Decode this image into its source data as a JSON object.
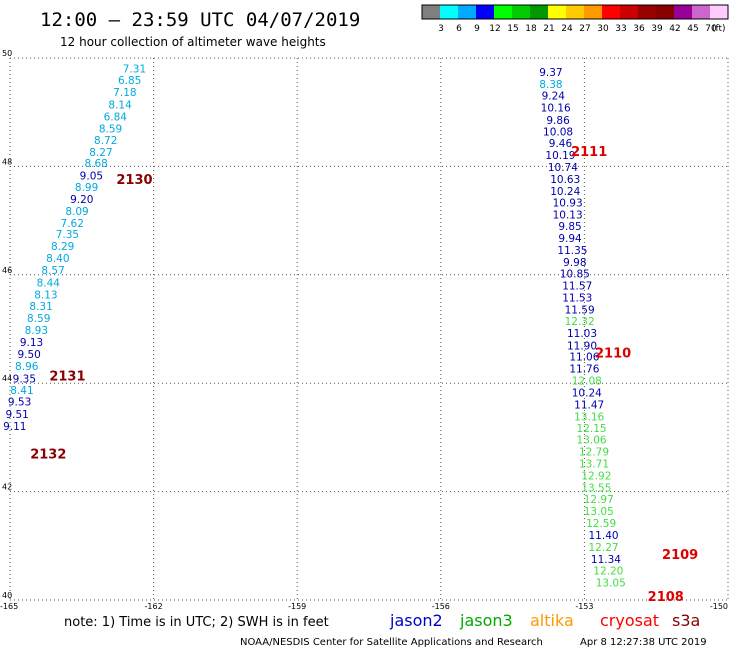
{
  "header": {
    "title": "12:00 — 23:59 UTC 04/07/2019",
    "subtitle": "12 hour collection of altimeter wave heights"
  },
  "footer": {
    "note": "note:  1) Time is in UTC;  2) SWH is in feet",
    "credit": "NOAA/NESDIS Center for Satellite Applications and Research",
    "timestamp": "Apr  8 12:27:38 UTC 2019"
  },
  "satellites": [
    {
      "name": "jason2",
      "color": "#0000cc"
    },
    {
      "name": "jason3",
      "color": "#00aa00"
    },
    {
      "name": "altika",
      "color": "#ff9900"
    },
    {
      "name": "cryosat",
      "color": "#ff0000"
    },
    {
      "name": "s3a",
      "color": "#880000"
    }
  ],
  "legend": {
    "unit": "(ft)",
    "bins": [
      {
        "label": "",
        "color": "#808080"
      },
      {
        "label": "3",
        "color": "#00ffff"
      },
      {
        "label": "6",
        "color": "#00aaff"
      },
      {
        "label": "9",
        "color": "#0000ff"
      },
      {
        "label": "12",
        "color": "#00ff00"
      },
      {
        "label": "15",
        "color": "#00cc00"
      },
      {
        "label": "18",
        "color": "#009900"
      },
      {
        "label": "21",
        "color": "#ffff00"
      },
      {
        "label": "24",
        "color": "#ffcc00"
      },
      {
        "label": "27",
        "color": "#ff9900"
      },
      {
        "label": "30",
        "color": "#ff0000"
      },
      {
        "label": "33",
        "color": "#cc0000"
      },
      {
        "label": "36",
        "color": "#990000"
      },
      {
        "label": "39",
        "color": "#880000"
      },
      {
        "label": "42",
        "color": "#990099"
      },
      {
        "label": "45",
        "color": "#cc66cc"
      },
      {
        "label": "70",
        "color": "#ffccff"
      }
    ]
  },
  "chart_data": {
    "type": "scatter",
    "xlim": [
      -165,
      -150
    ],
    "ylim": [
      40,
      50
    ],
    "x_ticks": [
      "-165",
      "-162",
      "-159",
      "-156",
      "-153",
      "-150"
    ],
    "y_ticks": [
      "40",
      "42",
      "44",
      "46",
      "48",
      "50"
    ],
    "grid": true,
    "passes": [
      {
        "label": "2111",
        "lon": -152.9,
        "lat": 48.28,
        "color": "#dd0000"
      },
      {
        "label": "2110",
        "lon": -152.4,
        "lat": 44.57,
        "color": "#dd0000"
      },
      {
        "label": "2109",
        "lon": -151.0,
        "lat": 40.85,
        "color": "#dd0000"
      },
      {
        "label": "2108",
        "lon": -151.3,
        "lat": 40.07,
        "color": "#dd0000"
      },
      {
        "label": "2130",
        "lon": -162.4,
        "lat": 47.77,
        "color": "#880000"
      },
      {
        "label": "2131",
        "lon": -163.8,
        "lat": 44.14,
        "color": "#880000"
      },
      {
        "label": "2132",
        "lon": -164.2,
        "lat": 42.7,
        "color": "#880000"
      }
    ],
    "tracks": [
      {
        "name": "west",
        "points": [
          {
            "lon": -162.4,
            "lat": 49.81,
            "v": "7.31",
            "c": "#00aadd"
          },
          {
            "lon": -162.5,
            "lat": 49.59,
            "v": "6.85",
            "c": "#00aadd"
          },
          {
            "lon": -162.6,
            "lat": 49.37,
            "v": "7.18",
            "c": "#00aadd"
          },
          {
            "lon": -162.7,
            "lat": 49.14,
            "v": "8.14",
            "c": "#00aadd"
          },
          {
            "lon": -162.8,
            "lat": 48.92,
            "v": "6.84",
            "c": "#00aadd"
          },
          {
            "lon": -162.9,
            "lat": 48.7,
            "v": "8.59",
            "c": "#00aadd"
          },
          {
            "lon": -163.0,
            "lat": 48.49,
            "v": "8.72",
            "c": "#00aadd"
          },
          {
            "lon": -163.1,
            "lat": 48.27,
            "v": "8.27",
            "c": "#00aadd"
          },
          {
            "lon": -163.2,
            "lat": 48.06,
            "v": "8.68",
            "c": "#00aadd"
          },
          {
            "lon": -163.3,
            "lat": 47.83,
            "v": "9.05",
            "c": "#0000aa"
          },
          {
            "lon": -163.4,
            "lat": 47.62,
            "v": "8.99",
            "c": "#00aadd"
          },
          {
            "lon": -163.5,
            "lat": 47.4,
            "v": "9.20",
            "c": "#0000aa"
          },
          {
            "lon": -163.6,
            "lat": 47.18,
            "v": "8.09",
            "c": "#00aadd"
          },
          {
            "lon": -163.7,
            "lat": 46.96,
            "v": "7.62",
            "c": "#00aadd"
          },
          {
            "lon": -163.8,
            "lat": 46.75,
            "v": "7.35",
            "c": "#00aadd"
          },
          {
            "lon": -163.9,
            "lat": 46.53,
            "v": "8.29",
            "c": "#00aadd"
          },
          {
            "lon": -164.0,
            "lat": 46.31,
            "v": "8.40",
            "c": "#00aadd"
          },
          {
            "lon": -164.1,
            "lat": 46.09,
            "v": "8.57",
            "c": "#00aadd"
          },
          {
            "lon": -164.2,
            "lat": 45.86,
            "v": "8.44",
            "c": "#00aadd"
          },
          {
            "lon": -164.25,
            "lat": 45.64,
            "v": "8.13",
            "c": "#00aadd"
          },
          {
            "lon": -164.35,
            "lat": 45.42,
            "v": "8.31",
            "c": "#00aadd"
          },
          {
            "lon": -164.4,
            "lat": 45.2,
            "v": "8.59",
            "c": "#00aadd"
          },
          {
            "lon": -164.45,
            "lat": 44.98,
            "v": "8.93",
            "c": "#00aadd"
          },
          {
            "lon": -164.55,
            "lat": 44.76,
            "v": "9.13",
            "c": "#0000aa"
          },
          {
            "lon": -164.6,
            "lat": 44.54,
            "v": "9.50",
            "c": "#0000aa"
          },
          {
            "lon": -164.65,
            "lat": 44.32,
            "v": "8.96",
            "c": "#00aadd"
          },
          {
            "lon": -164.7,
            "lat": 44.09,
            "v": "9.35",
            "c": "#0000aa"
          },
          {
            "lon": -164.75,
            "lat": 43.87,
            "v": "8.41",
            "c": "#00aadd"
          },
          {
            "lon": -164.8,
            "lat": 43.66,
            "v": "9.53",
            "c": "#0000aa"
          },
          {
            "lon": -164.85,
            "lat": 43.43,
            "v": "9.51",
            "c": "#0000aa"
          },
          {
            "lon": -164.9,
            "lat": 43.21,
            "v": "9.11",
            "c": "#0000aa"
          }
        ]
      },
      {
        "name": "east",
        "points": [
          {
            "lon": -153.7,
            "lat": 49.74,
            "v": "9.37",
            "c": "#0000aa"
          },
          {
            "lon": -153.7,
            "lat": 49.52,
            "v": "8.38",
            "c": "#00aadd"
          },
          {
            "lon": -153.65,
            "lat": 49.31,
            "v": "9.24",
            "c": "#0000aa"
          },
          {
            "lon": -153.6,
            "lat": 49.09,
            "v": "10.16",
            "c": "#0000aa"
          },
          {
            "lon": -153.55,
            "lat": 48.86,
            "v": "9.86",
            "c": "#0000aa"
          },
          {
            "lon": -153.55,
            "lat": 48.64,
            "v": "10.08",
            "c": "#0000aa"
          },
          {
            "lon": -153.5,
            "lat": 48.43,
            "v": "9.46",
            "c": "#0000aa"
          },
          {
            "lon": -153.5,
            "lat": 48.21,
            "v": "10.19",
            "c": "#0000aa"
          },
          {
            "lon": -153.45,
            "lat": 47.99,
            "v": "10.74",
            "c": "#0000aa"
          },
          {
            "lon": -153.4,
            "lat": 47.77,
            "v": "10.63",
            "c": "#0000aa"
          },
          {
            "lon": -153.4,
            "lat": 47.55,
            "v": "10.24",
            "c": "#0000aa"
          },
          {
            "lon": -153.35,
            "lat": 47.33,
            "v": "10.93",
            "c": "#0000aa"
          },
          {
            "lon": -153.35,
            "lat": 47.11,
            "v": "10.13",
            "c": "#0000aa"
          },
          {
            "lon": -153.3,
            "lat": 46.9,
            "v": "9.85",
            "c": "#0000aa"
          },
          {
            "lon": -153.3,
            "lat": 46.68,
            "v": "9.94",
            "c": "#0000aa"
          },
          {
            "lon": -153.25,
            "lat": 46.46,
            "v": "11.35",
            "c": "#0000aa"
          },
          {
            "lon": -153.2,
            "lat": 46.24,
            "v": "9.98",
            "c": "#0000aa"
          },
          {
            "lon": -153.2,
            "lat": 46.02,
            "v": "10.85",
            "c": "#0000aa"
          },
          {
            "lon": -153.15,
            "lat": 45.8,
            "v": "11.57",
            "c": "#0000aa"
          },
          {
            "lon": -153.15,
            "lat": 45.58,
            "v": "11.53",
            "c": "#0000aa"
          },
          {
            "lon": -153.1,
            "lat": 45.36,
            "v": "11.59",
            "c": "#0000aa"
          },
          {
            "lon": -153.1,
            "lat": 45.15,
            "v": "12.32",
            "c": "#44dd44"
          },
          {
            "lon": -153.05,
            "lat": 44.93,
            "v": "11.03",
            "c": "#0000aa"
          },
          {
            "lon": -153.05,
            "lat": 44.7,
            "v": "11.90",
            "c": "#0000aa"
          },
          {
            "lon": -153.0,
            "lat": 44.49,
            "v": "11.06",
            "c": "#0000aa"
          },
          {
            "lon": -153.0,
            "lat": 44.27,
            "v": "11.76",
            "c": "#0000aa"
          },
          {
            "lon": -152.95,
            "lat": 44.05,
            "v": "12.08",
            "c": "#44dd44"
          },
          {
            "lon": -152.95,
            "lat": 43.83,
            "v": "10.24",
            "c": "#0000aa"
          },
          {
            "lon": -152.9,
            "lat": 43.61,
            "v": "11.47",
            "c": "#0000aa"
          },
          {
            "lon": -152.9,
            "lat": 43.39,
            "v": "13.16",
            "c": "#44dd44"
          },
          {
            "lon": -152.85,
            "lat": 43.17,
            "v": "12.15",
            "c": "#44dd44"
          },
          {
            "lon": -152.85,
            "lat": 42.96,
            "v": "13.06",
            "c": "#44dd44"
          },
          {
            "lon": -152.8,
            "lat": 42.74,
            "v": "12.79",
            "c": "#44dd44"
          },
          {
            "lon": -152.8,
            "lat": 42.52,
            "v": "13.71",
            "c": "#44dd44"
          },
          {
            "lon": -152.75,
            "lat": 42.3,
            "v": "12.92",
            "c": "#44dd44"
          },
          {
            "lon": -152.75,
            "lat": 42.08,
            "v": "13.55",
            "c": "#44dd44"
          },
          {
            "lon": -152.7,
            "lat": 41.86,
            "v": "12.97",
            "c": "#44dd44"
          },
          {
            "lon": -152.7,
            "lat": 41.64,
            "v": "13.05",
            "c": "#44dd44"
          },
          {
            "lon": -152.65,
            "lat": 41.42,
            "v": "12.59",
            "c": "#44dd44"
          },
          {
            "lon": -152.6,
            "lat": 41.2,
            "v": "11.40",
            "c": "#0000aa"
          },
          {
            "lon": -152.6,
            "lat": 40.98,
            "v": "12.27",
            "c": "#44dd44"
          },
          {
            "lon": -152.55,
            "lat": 40.76,
            "v": "11.34",
            "c": "#0000aa"
          },
          {
            "lon": -152.5,
            "lat": 40.54,
            "v": "12.20",
            "c": "#44dd44"
          },
          {
            "lon": -152.45,
            "lat": 40.32,
            "v": "13.05",
            "c": "#44dd44"
          }
        ]
      }
    ]
  }
}
